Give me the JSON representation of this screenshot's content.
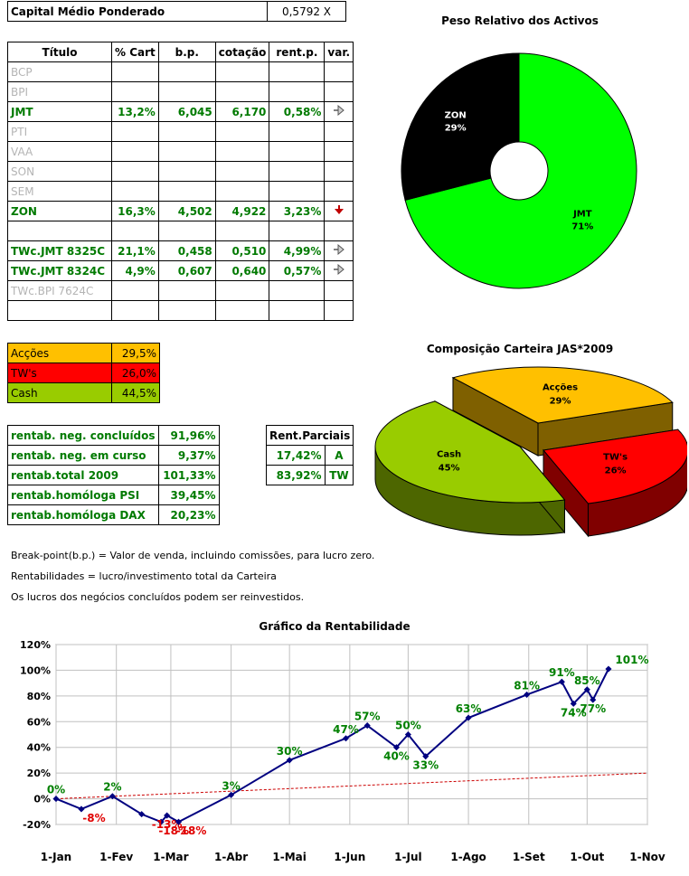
{
  "capital": {
    "label": "Capital Médio Ponderado",
    "value": "0,5792 X"
  },
  "portfolio": {
    "headers": [
      "Título",
      "% Cart",
      "b.p.",
      "cotação",
      "rent.p.",
      "var."
    ],
    "rows": [
      {
        "titulo": "BCP",
        "cart": "",
        "bp": "",
        "cot": "",
        "rent": "",
        "var": "",
        "active": false
      },
      {
        "titulo": "BPI",
        "cart": "",
        "bp": "",
        "cot": "",
        "rent": "",
        "var": "",
        "active": false
      },
      {
        "titulo": "JMT",
        "cart": "13,2%",
        "bp": "6,045",
        "cot": "6,170",
        "rent": "0,58%",
        "var": "right-arrow-icon",
        "active": true
      },
      {
        "titulo": "PTI",
        "cart": "",
        "bp": "",
        "cot": "",
        "rent": "",
        "var": "",
        "active": false
      },
      {
        "titulo": "VAA",
        "cart": "",
        "bp": "",
        "cot": "",
        "rent": "",
        "var": "",
        "active": false
      },
      {
        "titulo": "SON",
        "cart": "",
        "bp": "",
        "cot": "",
        "rent": "",
        "var": "",
        "active": false
      },
      {
        "titulo": "SEM",
        "cart": "",
        "bp": "",
        "cot": "",
        "rent": "",
        "var": "",
        "active": false
      },
      {
        "titulo": "ZON",
        "cart": "16,3%",
        "bp": "4,502",
        "cot": "4,922",
        "rent": "3,23%",
        "var": "down-arrow-icon",
        "active": true
      },
      {
        "titulo": "",
        "cart": "",
        "bp": "",
        "cot": "",
        "rent": "",
        "var": "",
        "active": false
      },
      {
        "titulo": "TWc.JMT 8325C",
        "cart": "21,1%",
        "bp": "0,458",
        "cot": "0,510",
        "rent": "4,99%",
        "var": "right-arrow-icon",
        "active": true
      },
      {
        "titulo": "TWc.JMT 8324C",
        "cart": "4,9%",
        "bp": "0,607",
        "cot": "0,640",
        "rent": "0,57%",
        "var": "right-arrow-icon",
        "active": true
      },
      {
        "titulo": "TWc.BPI 7624C",
        "cart": "",
        "bp": "",
        "cot": "",
        "rent": "",
        "var": "",
        "active": false
      },
      {
        "titulo": "",
        "cart": "",
        "bp": "",
        "cot": "",
        "rent": "",
        "var": "",
        "active": false
      }
    ]
  },
  "allocation": [
    {
      "label": "Acções",
      "value": "29,5%",
      "color": "#ffc000"
    },
    {
      "label": "TW's",
      "value": "26,0%",
      "color": "#ff0000"
    },
    {
      "label": "Cash",
      "value": "44,5%",
      "color": "#99cc00"
    }
  ],
  "returns": [
    {
      "label": "rentab. neg. concluídos",
      "value": "91,96%"
    },
    {
      "label": "rentab. neg. em curso",
      "value": "9,37%"
    },
    {
      "label": "rentab.total 2009",
      "value": "101,33%"
    },
    {
      "label": "rentab.homóloga PSI",
      "value": "39,45%"
    },
    {
      "label": "rentab.homóloga DAX",
      "value": "20,23%"
    }
  ],
  "partial": {
    "header": "Rent.Parciais",
    "rows": [
      {
        "value": "17,42%",
        "tag": "A"
      },
      {
        "value": "83,92%",
        "tag": "TW"
      }
    ]
  },
  "notes": [
    "Break-point(b.p.) = Valor de venda, incluindo comissões, para lucro zero.",
    "Rentabilidades = lucro/investimento total da Carteira",
    "Os lucros dos negócios concluídos podem ser reinvestidos."
  ],
  "chart_data": [
    {
      "type": "pie",
      "subtype": "doughnut",
      "title": "Peso Relativo dos Activos",
      "slices": [
        {
          "label": "ZON",
          "value": 29,
          "display": "29%",
          "color": "#000000"
        },
        {
          "label": "JMT",
          "value": 71,
          "display": "71%",
          "color": "#00ff00"
        }
      ]
    },
    {
      "type": "pie",
      "subtype": "3d-exploded",
      "title": "Composição Carteira JAS*2009",
      "slices": [
        {
          "label": "Acções",
          "value": 29,
          "display": "29%",
          "color": "#ffc000"
        },
        {
          "label": "TW's",
          "value": 26,
          "display": "26%",
          "color": "#ff0000"
        },
        {
          "label": "Cash",
          "value": 45,
          "display": "45%",
          "color": "#99cc00"
        }
      ]
    },
    {
      "type": "line",
      "title": "Gráfico da Rentabilidade",
      "x_ticks": [
        "1-Jan",
        "1-Fev",
        "1-Mar",
        "1-Abr",
        "1-Mai",
        "1-Jun",
        "1-Jul",
        "1-Ago",
        "1-Set",
        "1-Out",
        "1-Nov"
      ],
      "ylim": [
        -20,
        120
      ],
      "y_ticks": [
        "-20%",
        "0%",
        "20%",
        "40%",
        "60%",
        "80%",
        "100%",
        "120%"
      ],
      "grid": true,
      "series": [
        {
          "color": "#000080",
          "points": [
            {
              "x": "2009-01-01",
              "y": 0,
              "label": "0%"
            },
            {
              "x": "2009-01-14",
              "y": -8,
              "label": "-8%"
            },
            {
              "x": "2009-01-30",
              "y": 2,
              "label": "2%"
            },
            {
              "x": "2009-02-14",
              "y": -12,
              "label": ""
            },
            {
              "x": "2009-02-24",
              "y": -18,
              "label": "-18%"
            },
            {
              "x": "2009-02-27",
              "y": -13,
              "label": "-13%"
            },
            {
              "x": "2009-03-05",
              "y": -18,
              "label": "-18%"
            },
            {
              "x": "2009-04-01",
              "y": 3,
              "label": "3%"
            },
            {
              "x": "2009-05-01",
              "y": 30,
              "label": "30%"
            },
            {
              "x": "2009-05-30",
              "y": 47,
              "label": "47%"
            },
            {
              "x": "2009-06-10",
              "y": 57,
              "label": "57%"
            },
            {
              "x": "2009-06-25",
              "y": 40,
              "label": "40%"
            },
            {
              "x": "2009-07-01",
              "y": 50,
              "label": "50%"
            },
            {
              "x": "2009-07-10",
              "y": 33,
              "label": "33%"
            },
            {
              "x": "2009-08-01",
              "y": 63,
              "label": "63%"
            },
            {
              "x": "2009-08-31",
              "y": 81,
              "label": "81%"
            },
            {
              "x": "2009-09-18",
              "y": 91,
              "label": "91%"
            },
            {
              "x": "2009-09-24",
              "y": 74,
              "label": "74%"
            },
            {
              "x": "2009-10-01",
              "y": 85,
              "label": "85%"
            },
            {
              "x": "2009-10-04",
              "y": 77,
              "label": "77%"
            },
            {
              "x": "2009-10-12",
              "y": 101,
              "label": "101%"
            }
          ]
        },
        {
          "color": "#cc0000",
          "style": "dashed",
          "points": [
            {
              "x": "2009-01-01",
              "y": 0
            },
            {
              "x": "2009-11-01",
              "y": 20
            }
          ]
        }
      ]
    }
  ]
}
